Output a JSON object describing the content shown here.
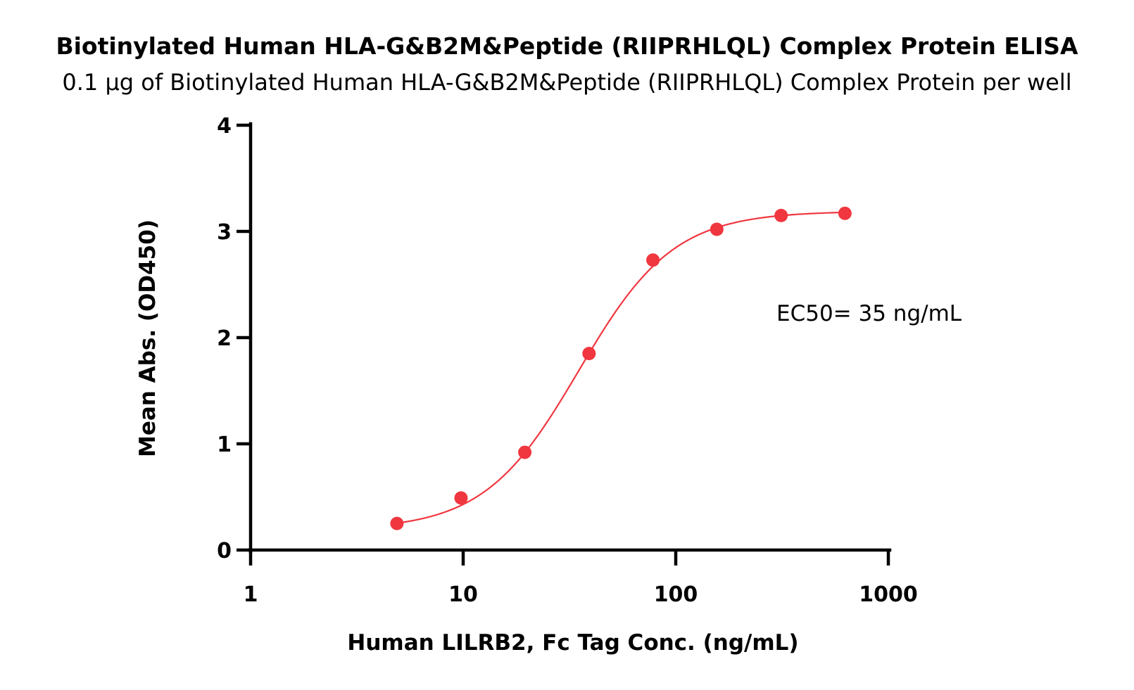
{
  "chart_data": {
    "type": "scatter",
    "title": "Biotinylated Human HLA-G&B2M&Peptide (RIIPRHLQL) Complex Protein ELISA",
    "subtitle": "0.1 µg of Biotinylated Human HLA-G&B2M&Peptide (RIIPRHLQL) Complex Protein per well",
    "xlabel": "Human LILRB2, Fc Tag Conc. (ng/mL)",
    "ylabel": "Mean Abs. (OD450)",
    "x_scale": "log",
    "xlim": [
      1,
      1000
    ],
    "ylim": [
      0,
      4
    ],
    "x_ticks": [
      "1",
      "10",
      "100",
      "1000"
    ],
    "x_tick_values": [
      1,
      10,
      100,
      1000
    ],
    "y_ticks": [
      "0",
      "1",
      "2",
      "3",
      "4"
    ],
    "y_tick_values": [
      0,
      1,
      2,
      3,
      4
    ],
    "grid": false,
    "series": [
      {
        "color": "#f0363f",
        "points": [
          {
            "x": 4.88,
            "y": 0.25
          },
          {
            "x": 9.77,
            "y": 0.49
          },
          {
            "x": 19.5,
            "y": 0.92
          },
          {
            "x": 39.1,
            "y": 1.85
          },
          {
            "x": 78.1,
            "y": 2.73
          },
          {
            "x": 156,
            "y": 3.02
          },
          {
            "x": 313,
            "y": 3.15
          },
          {
            "x": 625,
            "y": 3.17
          }
        ],
        "fit": {
          "bottom": 0.19,
          "top": 3.19,
          "ec50": 35,
          "hill": 1.95
        }
      }
    ],
    "annotation": "EC50= 35 ng/mL"
  }
}
